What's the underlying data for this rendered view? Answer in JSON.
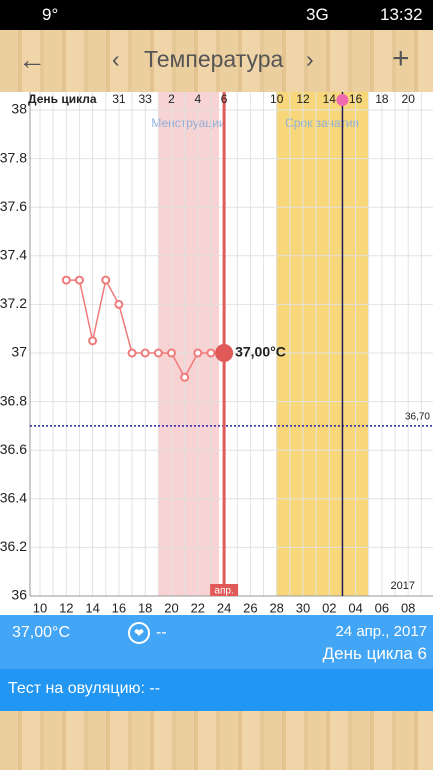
{
  "status_bar": {
    "temperature": "9°",
    "network": "3G",
    "time": "13:32"
  },
  "header": {
    "title": "Температура"
  },
  "chart_data": {
    "type": "line",
    "row_title": "День цикла",
    "categories": [
      "10",
      null,
      "12",
      null,
      "14",
      null,
      "16",
      null,
      "18",
      null,
      "20",
      null,
      "22",
      null,
      "24",
      null,
      "26",
      null,
      "28",
      null,
      "30",
      null,
      "02",
      null,
      "04",
      null,
      "06",
      null,
      "08",
      null
    ],
    "cycle_days": [
      null,
      null,
      null,
      null,
      null,
      null,
      "31",
      null,
      "33",
      null,
      "2",
      null,
      "4",
      null,
      "6",
      null,
      null,
      null,
      "10",
      null,
      "12",
      null,
      "14",
      null,
      "16",
      null,
      "18",
      null,
      "20",
      null
    ],
    "series": [
      {
        "color": "#f07a7a",
        "values": [
          null,
          null,
          37.3,
          37.3,
          37.05,
          37.3,
          37.2,
          37.0,
          37.0,
          37.0,
          37.0,
          36.9,
          37.0,
          37.0,
          37.0,
          null,
          null,
          null,
          null,
          null,
          null,
          null,
          null,
          null,
          null,
          null,
          null,
          null,
          null,
          null
        ]
      }
    ],
    "ylim": [
      36,
      38
    ],
    "yticks": [
      36,
      36.2,
      36.4,
      36.6,
      36.8,
      37,
      37.2,
      37.4,
      37.6,
      37.8,
      38
    ],
    "grid": true,
    "bands": [
      {
        "label": "Менструации",
        "color": "#f8d3d3"
      },
      {
        "label": "Срок зачатия",
        "color": "#f7d77a"
      }
    ],
    "reference_line": {
      "value": 36.7,
      "label": "36,70",
      "color": "#2222aa"
    },
    "today": {
      "label": "37,00°C",
      "marker": "апр."
    },
    "year": "2017"
  },
  "info": {
    "temperature": "37,00°C",
    "note": "--",
    "date": "24 апр., 2017",
    "cycle_day": "День цикла 6",
    "test": "Тест на овуляцию: --"
  }
}
